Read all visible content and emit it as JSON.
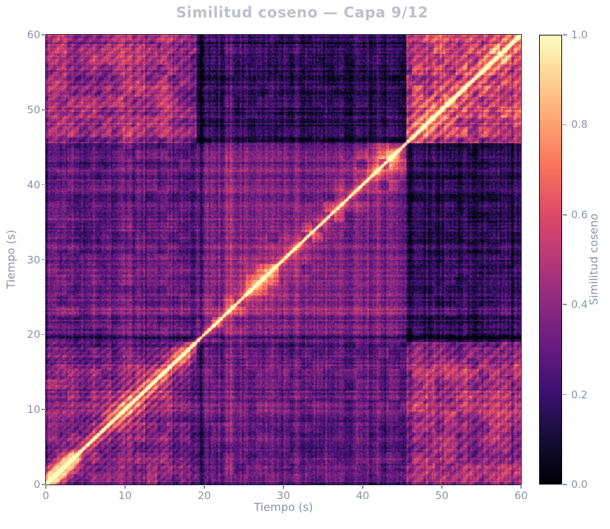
{
  "figure": {
    "title": "Similitud coseno — Capa 9/12",
    "background": "#ffffff"
  },
  "axes": {
    "xlabel": "Tiempo (s)",
    "ylabel": "Tiempo (s)",
    "x_ticks": [
      0,
      10,
      20,
      30,
      40,
      50,
      60
    ],
    "y_ticks": [
      0,
      10,
      20,
      30,
      40,
      50,
      60
    ],
    "x_range": [
      0,
      60
    ],
    "y_range": [
      0,
      60
    ]
  },
  "colorbar": {
    "label": "Similitud coseno",
    "tick_labels": [
      "0.0",
      "0.2",
      "0.4",
      "0.6",
      "0.8",
      "1.0"
    ],
    "tick_values": [
      0,
      0.2,
      0.4,
      0.6,
      0.8,
      1.0
    ],
    "range": [
      0,
      1
    ],
    "border_color": "#000000"
  },
  "colors": {
    "title_text": "#bfbfcb",
    "tick_text": "#8b93a6",
    "axis_spine": "#2a2a3c",
    "background": "#ffffff"
  },
  "chart_data": {
    "type": "heatmap",
    "title": "Similitud coseno — Capa 9/12",
    "xlabel": "Tiempo (s)",
    "ylabel": "Tiempo (s)",
    "x_range": [
      0,
      60
    ],
    "y_range": [
      0,
      60
    ],
    "value_range": [
      0,
      1
    ],
    "symmetric": true,
    "diagonal_value": 1.0,
    "grid": false,
    "legend": "colorbar-right",
    "colormap": {
      "name": "magma",
      "stops": [
        {
          "v": 0.0,
          "color": "#000004"
        },
        {
          "v": 0.1,
          "color": "#140e36"
        },
        {
          "v": 0.2,
          "color": "#3b0f70"
        },
        {
          "v": 0.3,
          "color": "#641a80"
        },
        {
          "v": 0.4,
          "color": "#8c2981"
        },
        {
          "v": 0.5,
          "color": "#b73779"
        },
        {
          "v": 0.6,
          "color": "#de4968"
        },
        {
          "v": 0.7,
          "color": "#f7705c"
        },
        {
          "v": 0.8,
          "color": "#fe9f6d"
        },
        {
          "v": 0.9,
          "color": "#fecf92"
        },
        {
          "v": 1.0,
          "color": "#fcfdbf"
        }
      ]
    },
    "segments": [
      {
        "id": "A1",
        "start": 0,
        "end": 16
      },
      {
        "id": "A2",
        "start": 16,
        "end": 19
      },
      {
        "id": "B",
        "start": 19,
        "end": 45.5
      },
      {
        "id": "C",
        "start": 45.5,
        "end": 60
      }
    ],
    "block_mean_similarity": [
      [
        0.42,
        0.34,
        0.32,
        0.46
      ],
      [
        0.34,
        0.42,
        0.3,
        0.4
      ],
      [
        0.32,
        0.3,
        0.37,
        0.17
      ],
      [
        0.46,
        0.4,
        0.17,
        0.55
      ]
    ],
    "render_model": {
      "seed": 1337,
      "dt": 0.125,
      "col_bin": 0.25,
      "col_noise_amp": 0.15,
      "dark_col_prob": 0.08,
      "dark_col_extra": 0.1,
      "pixel_noise_amp": 0.17,
      "patch_period": 1.4,
      "patch_amp": [
        [
          0.07,
          0.05,
          0.05,
          0.08
        ],
        [
          0.05,
          0.06,
          0.05,
          0.07
        ],
        [
          0.05,
          0.05,
          0.0,
          0.04
        ],
        [
          0.08,
          0.07,
          0.04,
          0.11
        ]
      ],
      "bb_patch_amp": 0.16,
      "bb_patch_sigma": 4.5,
      "stripes": {
        "A_period": 1.05,
        "A_amp_base": 0.05,
        "A_amp_near": 0.13,
        "A_sigma": 3.2,
        "A_mid": 10.5,
        "A_mid_sigma": 5.0,
        "C_period": 1.45,
        "C_amp_base": 0.06,
        "C_amp_near": 0.08,
        "C_sigma": 4.0,
        "AC_amp": 0.06
      },
      "glow": {
        "all_amp": 0.16,
        "all_sigma": 0.9,
        "A_amp": 0.22,
        "A_sigma": 1.8,
        "B_amp": 0.22,
        "B_sigma": 3.5,
        "B_base": 0.35,
        "B_mid1": 29.5,
        "B_m1s": 4.5,
        "B_m1a": 0.65,
        "B_mid2": 42.8,
        "B_m2s": 2.6,
        "B_m2a": 0.9,
        "C_amp": 0.15,
        "C_sigma": 2.0
      },
      "diag": {
        "amp": 0.85,
        "sigma": 0.22
      },
      "corner_bright": {
        "limit": 4.5,
        "amp": 0.25,
        "sigma": 1.6
      },
      "bands": [
        {
          "t": 19.6,
          "amp": -0.16,
          "sigma": 0.45
        },
        {
          "t": 23.3,
          "amp": 0.1,
          "sigma": 0.5
        },
        {
          "t": 45.85,
          "amp": -0.1,
          "sigma": 0.35
        }
      ],
      "edge_dark": {
        "amp": 0.1,
        "sigma": 0.35
      }
    }
  }
}
